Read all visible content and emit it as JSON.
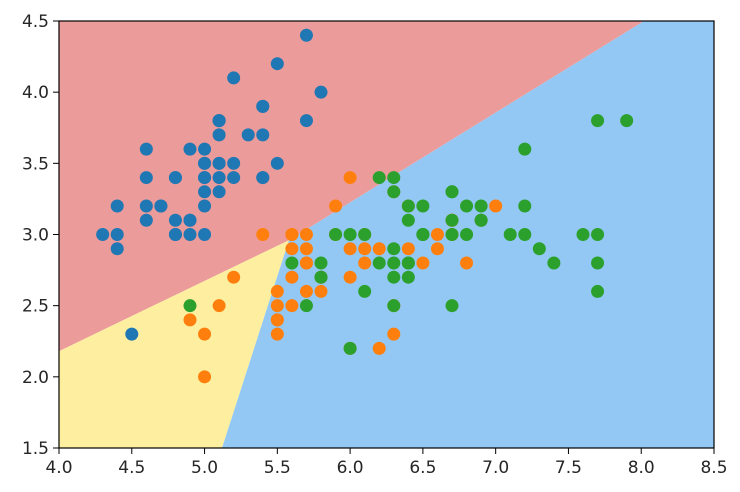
{
  "chart_data": {
    "type": "scatter",
    "title": "",
    "xlabel": "",
    "ylabel": "",
    "xlim": [
      4.0,
      8.5
    ],
    "ylim": [
      1.5,
      4.5
    ],
    "x_ticks": [
      4.0,
      4.5,
      5.0,
      5.5,
      6.0,
      6.5,
      7.0,
      7.5,
      8.0,
      8.5
    ],
    "y_ticks": [
      1.5,
      2.0,
      2.5,
      3.0,
      3.5,
      4.0,
      4.5
    ],
    "x_tick_labels": [
      "4.0",
      "4.5",
      "5.0",
      "5.5",
      "6.0",
      "6.5",
      "7.0",
      "7.5",
      "8.0",
      "8.5"
    ],
    "y_tick_labels": [
      "1.5",
      "2.0",
      "2.5",
      "3.0",
      "3.5",
      "4.0",
      "4.5"
    ],
    "grid": false,
    "legend": "none",
    "decision_regions": [
      {
        "class": 0,
        "color": "#ec9b9b",
        "polygon": [
          [
            4.0,
            2.18
          ],
          [
            5.58,
            2.96
          ],
          [
            8.02,
            4.5
          ],
          [
            4.0,
            4.5
          ]
        ]
      },
      {
        "class": 1,
        "color": "#fdef9f",
        "polygon": [
          [
            4.0,
            1.5
          ],
          [
            5.12,
            1.5
          ],
          [
            5.58,
            2.96
          ],
          [
            4.0,
            2.18
          ]
        ]
      },
      {
        "class": 2,
        "color": "#92c8f3",
        "polygon": [
          [
            5.12,
            1.5
          ],
          [
            8.5,
            1.5
          ],
          [
            8.5,
            4.5
          ],
          [
            8.02,
            4.5
          ],
          [
            5.58,
            2.96
          ]
        ]
      }
    ],
    "series": [
      {
        "color": "#1f77b4",
        "points": [
          [
            5.1,
            3.5
          ],
          [
            4.9,
            3.0
          ],
          [
            4.7,
            3.2
          ],
          [
            4.6,
            3.1
          ],
          [
            5.0,
            3.6
          ],
          [
            5.4,
            3.9
          ],
          [
            4.6,
            3.4
          ],
          [
            5.0,
            3.4
          ],
          [
            4.4,
            2.9
          ],
          [
            4.9,
            3.1
          ],
          [
            5.4,
            3.7
          ],
          [
            4.8,
            3.4
          ],
          [
            4.8,
            3.0
          ],
          [
            4.3,
            3.0
          ],
          [
            5.8,
            4.0
          ],
          [
            5.7,
            4.4
          ],
          [
            5.4,
            3.9
          ],
          [
            5.1,
            3.5
          ],
          [
            5.7,
            3.8
          ],
          [
            5.1,
            3.8
          ],
          [
            5.4,
            3.4
          ],
          [
            5.1,
            3.7
          ],
          [
            4.6,
            3.6
          ],
          [
            5.1,
            3.3
          ],
          [
            4.8,
            3.4
          ],
          [
            5.0,
            3.0
          ],
          [
            5.0,
            3.4
          ],
          [
            5.2,
            3.5
          ],
          [
            5.2,
            3.4
          ],
          [
            4.7,
            3.2
          ],
          [
            4.8,
            3.1
          ],
          [
            5.4,
            3.4
          ],
          [
            5.2,
            4.1
          ],
          [
            5.5,
            4.2
          ],
          [
            4.9,
            3.1
          ],
          [
            5.0,
            3.2
          ],
          [
            5.5,
            3.5
          ],
          [
            4.9,
            3.6
          ],
          [
            4.4,
            3.0
          ],
          [
            5.1,
            3.4
          ],
          [
            5.0,
            3.5
          ],
          [
            4.5,
            2.3
          ],
          [
            4.4,
            3.2
          ],
          [
            5.0,
            3.5
          ],
          [
            5.1,
            3.8
          ],
          [
            4.8,
            3.0
          ],
          [
            5.1,
            3.8
          ],
          [
            4.6,
            3.2
          ],
          [
            5.3,
            3.7
          ],
          [
            5.0,
            3.3
          ]
        ]
      },
      {
        "color": "#ff7f0e",
        "points": [
          [
            7.0,
            3.2
          ],
          [
            6.4,
            3.2
          ],
          [
            6.9,
            3.1
          ],
          [
            5.5,
            2.3
          ],
          [
            6.5,
            2.8
          ],
          [
            5.7,
            2.8
          ],
          [
            6.3,
            3.3
          ],
          [
            4.9,
            2.4
          ],
          [
            6.6,
            2.9
          ],
          [
            5.2,
            2.7
          ],
          [
            5.0,
            2.0
          ],
          [
            5.9,
            3.0
          ],
          [
            6.0,
            2.2
          ],
          [
            6.1,
            2.9
          ],
          [
            5.6,
            2.9
          ],
          [
            6.7,
            3.1
          ],
          [
            5.6,
            3.0
          ],
          [
            5.8,
            2.7
          ],
          [
            6.2,
            2.2
          ],
          [
            5.6,
            2.5
          ],
          [
            5.9,
            3.2
          ],
          [
            6.1,
            2.8
          ],
          [
            6.3,
            2.5
          ],
          [
            6.4,
            2.9
          ],
          [
            6.6,
            3.0
          ],
          [
            6.8,
            2.8
          ],
          [
            6.7,
            3.0
          ],
          [
            6.0,
            2.9
          ],
          [
            5.7,
            2.6
          ],
          [
            5.5,
            2.4
          ],
          [
            5.5,
            2.4
          ],
          [
            5.8,
            2.7
          ],
          [
            6.0,
            2.7
          ],
          [
            5.4,
            3.0
          ],
          [
            6.0,
            3.4
          ],
          [
            6.7,
            3.1
          ],
          [
            6.3,
            2.3
          ],
          [
            5.6,
            3.0
          ],
          [
            5.5,
            2.5
          ],
          [
            5.5,
            2.6
          ],
          [
            6.1,
            3.0
          ],
          [
            5.8,
            2.6
          ],
          [
            5.0,
            2.3
          ],
          [
            5.6,
            2.7
          ],
          [
            5.7,
            3.0
          ],
          [
            5.7,
            2.9
          ],
          [
            6.2,
            2.9
          ],
          [
            5.1,
            2.5
          ],
          [
            5.7,
            2.8
          ]
        ]
      },
      {
        "color": "#2ca02c",
        "points": [
          [
            6.3,
            3.3
          ],
          [
            5.8,
            2.7
          ],
          [
            7.1,
            3.0
          ],
          [
            6.3,
            2.9
          ],
          [
            6.5,
            3.0
          ],
          [
            7.6,
            3.0
          ],
          [
            4.9,
            2.5
          ],
          [
            7.3,
            2.9
          ],
          [
            6.7,
            2.5
          ],
          [
            7.2,
            3.6
          ],
          [
            6.5,
            3.2
          ],
          [
            6.4,
            2.7
          ],
          [
            6.8,
            3.0
          ],
          [
            5.7,
            2.5
          ],
          [
            5.8,
            2.8
          ],
          [
            6.4,
            3.2
          ],
          [
            6.5,
            3.0
          ],
          [
            7.7,
            3.8
          ],
          [
            7.7,
            2.6
          ],
          [
            6.0,
            2.2
          ],
          [
            6.9,
            3.2
          ],
          [
            5.6,
            2.8
          ],
          [
            7.7,
            2.8
          ],
          [
            6.3,
            2.7
          ],
          [
            6.7,
            3.3
          ],
          [
            7.2,
            3.2
          ],
          [
            6.2,
            2.8
          ],
          [
            6.1,
            3.0
          ],
          [
            6.4,
            2.8
          ],
          [
            7.2,
            3.0
          ],
          [
            7.4,
            2.8
          ],
          [
            7.9,
            3.8
          ],
          [
            6.4,
            2.8
          ],
          [
            6.3,
            2.8
          ],
          [
            6.1,
            2.6
          ],
          [
            7.7,
            3.0
          ],
          [
            6.3,
            3.4
          ],
          [
            6.4,
            3.1
          ],
          [
            6.0,
            3.0
          ],
          [
            6.9,
            3.1
          ],
          [
            6.7,
            3.1
          ],
          [
            6.9,
            3.1
          ],
          [
            5.8,
            2.7
          ],
          [
            6.8,
            3.2
          ],
          [
            6.7,
            3.3
          ],
          [
            6.7,
            3.0
          ],
          [
            6.3,
            2.5
          ],
          [
            6.5,
            3.0
          ],
          [
            6.2,
            3.4
          ],
          [
            5.9,
            3.0
          ]
        ]
      }
    ]
  }
}
